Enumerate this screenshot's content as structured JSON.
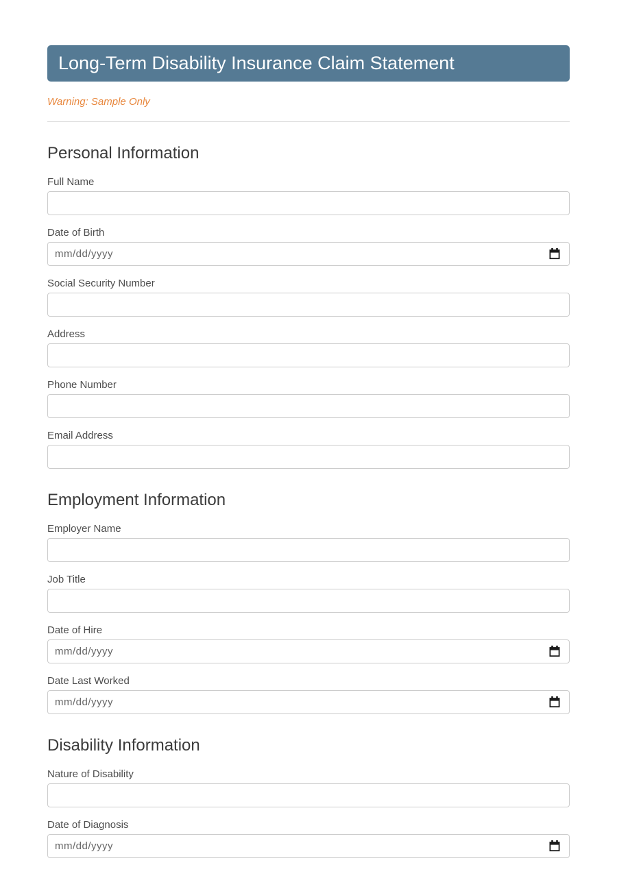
{
  "header": {
    "title": "Long-Term Disability Insurance Claim Statement",
    "warning": "Warning: Sample Only"
  },
  "colors": {
    "header_bg": "#557a94",
    "header_text": "#ffffff",
    "warning_text": "#e8873d",
    "section_heading": "#3b3b3b",
    "field_label": "#4d4d4d",
    "input_border": "#cccccc",
    "date_placeholder": "#666666"
  },
  "icons": {
    "date_picker": "calendar-icon"
  },
  "sections": [
    {
      "heading": "Personal Information",
      "fields": [
        {
          "label": "Full Name",
          "type": "text",
          "value": "",
          "placeholder": ""
        },
        {
          "label": "Date of Birth",
          "type": "date",
          "value": "",
          "placeholder": "mm/dd/yyyy"
        },
        {
          "label": "Social Security Number",
          "type": "text",
          "value": "",
          "placeholder": ""
        },
        {
          "label": "Address",
          "type": "text",
          "value": "",
          "placeholder": ""
        },
        {
          "label": "Phone Number",
          "type": "text",
          "value": "",
          "placeholder": ""
        },
        {
          "label": "Email Address",
          "type": "text",
          "value": "",
          "placeholder": ""
        }
      ]
    },
    {
      "heading": "Employment Information",
      "fields": [
        {
          "label": "Employer Name",
          "type": "text",
          "value": "",
          "placeholder": ""
        },
        {
          "label": "Job Title",
          "type": "text",
          "value": "",
          "placeholder": ""
        },
        {
          "label": "Date of Hire",
          "type": "date",
          "value": "",
          "placeholder": "mm/dd/yyyy"
        },
        {
          "label": "Date Last Worked",
          "type": "date",
          "value": "",
          "placeholder": "mm/dd/yyyy"
        }
      ]
    },
    {
      "heading": "Disability Information",
      "fields": [
        {
          "label": "Nature of Disability",
          "type": "text",
          "value": "",
          "placeholder": ""
        },
        {
          "label": "Date of Diagnosis",
          "type": "date",
          "value": "",
          "placeholder": "mm/dd/yyyy"
        }
      ]
    }
  ]
}
